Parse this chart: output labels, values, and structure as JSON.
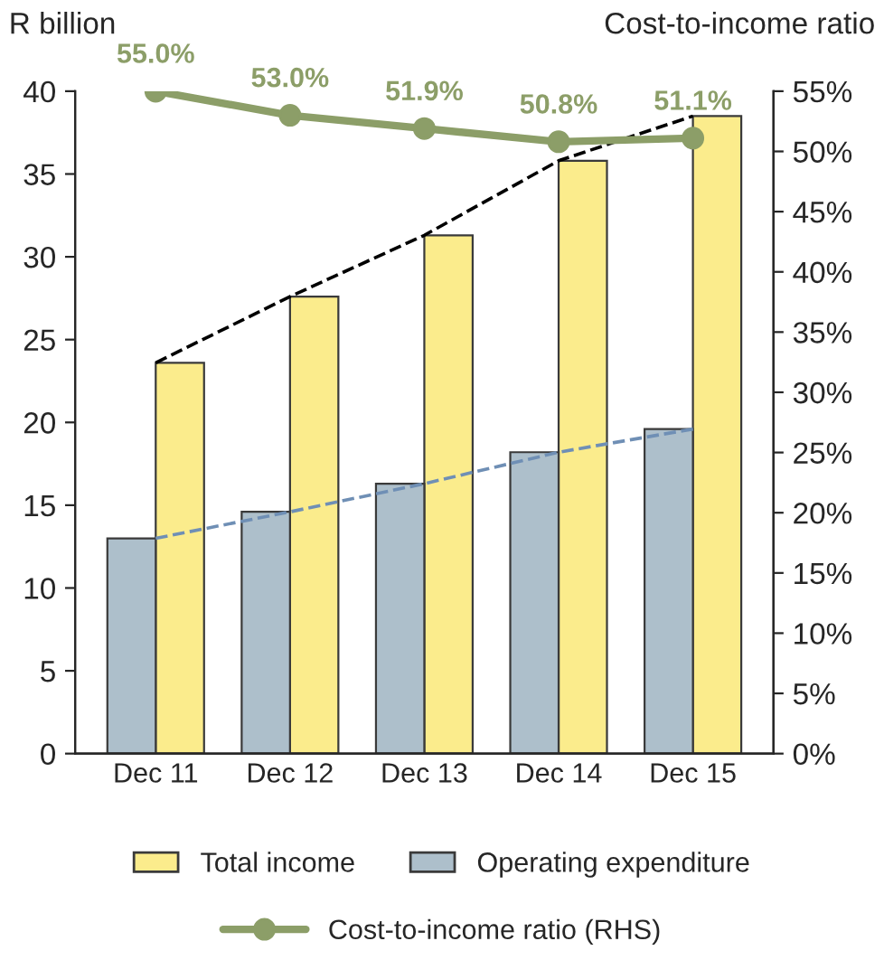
{
  "chart_data": {
    "type": "bar",
    "ylabel": "R billion",
    "y2label": "Cost-to-income ratio",
    "categories": [
      "Dec 11",
      "Dec 12",
      "Dec 13",
      "Dec 14",
      "Dec 15"
    ],
    "series": [
      {
        "name": "Total income",
        "color": "#fbec8c",
        "values": [
          23.6,
          27.6,
          31.3,
          35.8,
          38.5
        ]
      },
      {
        "name": "Operating expenditure",
        "color": "#adbfcb",
        "values": [
          13.0,
          14.6,
          16.3,
          18.2,
          19.6
        ]
      },
      {
        "type": "line",
        "color": "#000000",
        "line_style": "dashed",
        "marker": "none",
        "values": [
          23.6,
          27.6,
          31.3,
          35.8,
          38.5
        ]
      },
      {
        "type": "line",
        "color": "#6f8fb5",
        "line_style": "dashed",
        "marker": "none",
        "values": [
          13.0,
          14.6,
          16.3,
          18.2,
          19.6
        ]
      },
      {
        "type": "line",
        "name": "Cost-to-income ratio (RHS)",
        "axis": "y2",
        "color": "#8c9e68",
        "marker": "circle",
        "line_style": "solid",
        "values": [
          55.0,
          53.0,
          51.9,
          50.8,
          51.1
        ],
        "value_labels": [
          "55.0%",
          "53.0%",
          "51.9%",
          "50.8%",
          "51.1%"
        ]
      }
    ],
    "ylim": [
      0,
      40
    ],
    "yticks": [
      0,
      5,
      10,
      15,
      20,
      25,
      30,
      35,
      40
    ],
    "y2lim": [
      0,
      55
    ],
    "y2ticks": [
      {
        "value": 0,
        "label": "0%"
      },
      {
        "value": 5,
        "label": "5%"
      },
      {
        "value": 10,
        "label": "10%"
      },
      {
        "value": 15,
        "label": "15%"
      },
      {
        "value": 20,
        "label": "20%"
      },
      {
        "value": 25,
        "label": "25%"
      },
      {
        "value": 30,
        "label": "30%"
      },
      {
        "value": 35,
        "label": "35%"
      },
      {
        "value": 40,
        "label": "40%"
      },
      {
        "value": 45,
        "label": "45%"
      },
      {
        "value": 50,
        "label": "50%"
      },
      {
        "value": 55,
        "label": "55%"
      }
    ],
    "grid": false,
    "legend": "bottom"
  }
}
